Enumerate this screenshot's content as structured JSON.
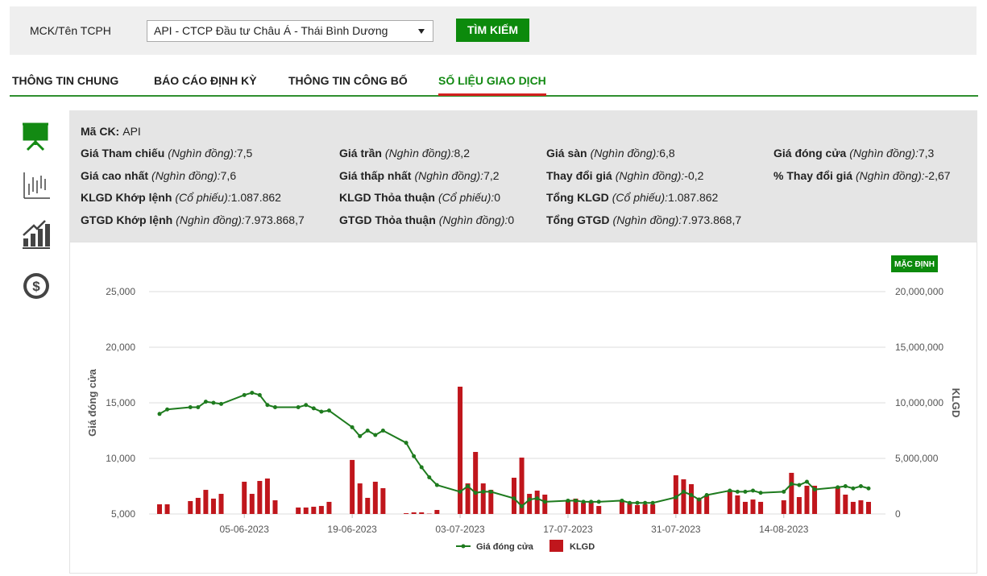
{
  "search": {
    "label": "MCK/Tên TCPH",
    "selected": "API - CTCP Đầu tư Châu Á - Thái Bình Dương",
    "button": "TÌM KIẾM"
  },
  "tabs": [
    "THÔNG TIN CHUNG",
    "BÁO CÁO ĐỊNH KỲ",
    "THÔNG TIN CÔNG BỐ",
    "SỐ LIỆU GIAO DỊCH"
  ],
  "active_tab": 3,
  "info": {
    "rows": [
      [
        {
          "label": "Mã CK:",
          "value": "API"
        }
      ],
      [
        {
          "label": "Giá Tham chiếu",
          "unit": "(Nghìn đồng):",
          "value": "7,5"
        },
        {
          "label": "Giá trần",
          "unit": "(Nghìn đồng):",
          "value": "8,2"
        },
        {
          "label": "Giá sàn",
          "unit": "(Nghìn đồng):",
          "value": "6,8"
        },
        {
          "label": "Giá đóng cửa",
          "unit": "(Nghìn đồng):",
          "value": "7,3"
        }
      ],
      [
        {
          "label": "Giá cao nhất",
          "unit": "(Nghìn đồng):",
          "value": "7,6"
        },
        {
          "label": "Giá thấp nhất",
          "unit": "(Nghìn đồng):",
          "value": "7,2"
        },
        {
          "label": "Thay đổi giá",
          "unit": "(Nghìn đồng):",
          "value": "-0,2"
        },
        {
          "label": "% Thay đổi giá",
          "unit": "(Nghìn đồng):",
          "value": "-2,67"
        }
      ],
      [
        {
          "label": "KLGD Khớp lệnh",
          "unit": "(Cổ phiếu):",
          "value": "1.087.862"
        },
        {
          "label": "KLGD Thỏa thuận",
          "unit": "(Cổ phiếu):",
          "value": "0"
        },
        {
          "label": "Tổng KLGD",
          "unit": "(Cổ phiếu):",
          "value": "1.087.862"
        }
      ],
      [
        {
          "label": "GTGD Khớp lệnh",
          "unit": "(Nghìn đồng):",
          "value": "7.973.868,7"
        },
        {
          "label": "GTGD Thỏa thuận",
          "unit": "(Nghìn đồng):",
          "value": "0"
        },
        {
          "label": "Tổng GTGD",
          "unit": "(Nghìn đồng):",
          "value": "7.973.868,7"
        }
      ]
    ]
  },
  "chart_data": {
    "type": "combo",
    "reset_button": "MẶC ĐỊNH",
    "ylabel": "Giá đóng cửa",
    "y2label": "KLGD",
    "x": [
      "25-05-2023",
      "26-05-2023",
      "29-05-2023",
      "30-05-2023",
      "31-05-2023",
      "01-06-2023",
      "02-06-2023",
      "05-06-2023",
      "06-06-2023",
      "07-06-2023",
      "08-06-2023",
      "09-06-2023",
      "12-06-2023",
      "13-06-2023",
      "14-06-2023",
      "15-06-2023",
      "16-06-2023",
      "19-06-2023",
      "20-06-2023",
      "21-06-2023",
      "22-06-2023",
      "23-06-2023",
      "26-06-2023",
      "27-06-2023",
      "28-06-2023",
      "29-06-2023",
      "30-06-2023",
      "03-07-2023",
      "04-07-2023",
      "05-07-2023",
      "06-07-2023",
      "07-07-2023",
      "10-07-2023",
      "11-07-2023",
      "12-07-2023",
      "13-07-2023",
      "14-07-2023",
      "17-07-2023",
      "18-07-2023",
      "19-07-2023",
      "20-07-2023",
      "21-07-2023",
      "24-07-2023",
      "25-07-2023",
      "26-07-2023",
      "27-07-2023",
      "28-07-2023",
      "31-07-2023",
      "01-08-2023",
      "02-08-2023",
      "03-08-2023",
      "04-08-2023",
      "07-08-2023",
      "08-08-2023",
      "09-08-2023",
      "10-08-2023",
      "11-08-2023",
      "14-08-2023",
      "15-08-2023",
      "16-08-2023",
      "17-08-2023",
      "18-08-2023",
      "21-08-2023",
      "22-08-2023",
      "23-08-2023",
      "24-08-2023",
      "25-08-2023"
    ],
    "xticks": [
      "05-06-2023",
      "19-06-2023",
      "03-07-2023",
      "17-07-2023",
      "31-07-2023",
      "14-08-2023"
    ],
    "ylim": [
      5000,
      25000
    ],
    "yticks": [
      {
        "value": 5000,
        "label": "5,000"
      },
      {
        "value": 10000,
        "label": "10,000"
      },
      {
        "value": 15000,
        "label": "15,000"
      },
      {
        "value": 20000,
        "label": "20,000"
      },
      {
        "value": 25000,
        "label": "25,000"
      }
    ],
    "y2lim": [
      0,
      20000000
    ],
    "y2ticks": [
      0,
      {
        "value": 5000000,
        "label": "5,000,000"
      },
      {
        "value": 10000000,
        "label": "10,000,000"
      },
      {
        "value": 15000000,
        "label": "15,000,000"
      },
      {
        "value": 20000000,
        "label": "20,000,000"
      }
    ],
    "grid": true,
    "series": [
      {
        "name": "Giá đóng cửa",
        "type": "line",
        "color": "#1e7b1e",
        "values": [
          14000,
          14400,
          14600,
          14600,
          15100,
          15000,
          14900,
          15700,
          15900,
          15700,
          14800,
          14600,
          14600,
          14800,
          14500,
          14200,
          14300,
          12800,
          12000,
          12500,
          12100,
          12500,
          11400,
          10200,
          9200,
          8300,
          7600,
          7000,
          7500,
          6900,
          7000,
          7000,
          6400,
          5700,
          6300,
          6400,
          6100,
          6200,
          6200,
          6100,
          6100,
          6100,
          6200,
          6000,
          6000,
          6000,
          6000,
          6500,
          7000,
          6700,
          6300,
          6700,
          7100,
          7000,
          7000,
          7100,
          6900,
          7000,
          7700,
          7600,
          7900,
          7200,
          7400,
          7500,
          7300,
          7500,
          7300
        ]
      },
      {
        "name": "KLGD",
        "type": "bar",
        "axis": "y2",
        "color": "#c0161c",
        "values": [
          870000,
          870000,
          1160000,
          1450000,
          2170000,
          1380000,
          1810000,
          2900000,
          1810000,
          2970000,
          3190000,
          1230000,
          580000,
          580000,
          650000,
          720000,
          1090000,
          4860000,
          2750000,
          1450000,
          2900000,
          2320000,
          70000,
          145000,
          145000,
          30000,
          360000,
          11450000,
          2750000,
          5580000,
          2750000,
          2170000,
          3260000,
          5070000,
          1810000,
          2100000,
          1740000,
          1230000,
          1380000,
          1010000,
          1160000,
          720000,
          1230000,
          940000,
          800000,
          870000,
          870000,
          3480000,
          3120000,
          2680000,
          1380000,
          1670000,
          2100000,
          1670000,
          1090000,
          1300000,
          1090000,
          1230000,
          3700000,
          1520000,
          2540000,
          2540000,
          2460000,
          1740000,
          1090000,
          1230000,
          1087862
        ]
      }
    ]
  }
}
